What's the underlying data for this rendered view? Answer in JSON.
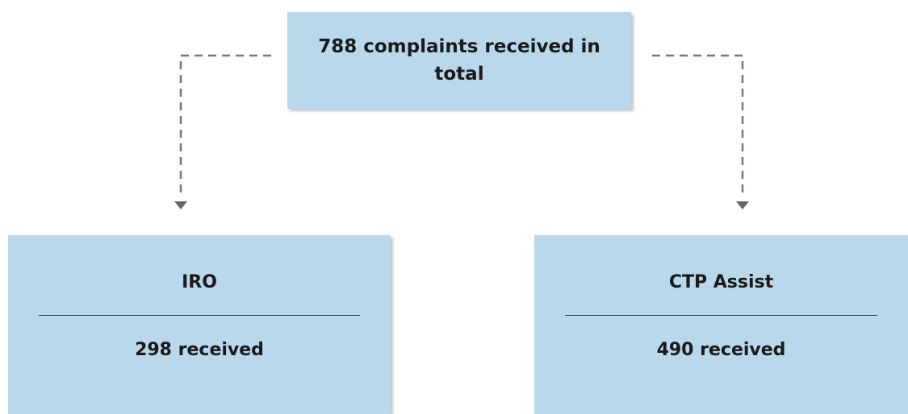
{
  "nodes": [
    {
      "label": "788 complaints received in total"
    },
    {
      "label": "IRO",
      "detail": "298 received"
    },
    {
      "label": "CTP Assist",
      "detail": "490 received"
    }
  ]
}
